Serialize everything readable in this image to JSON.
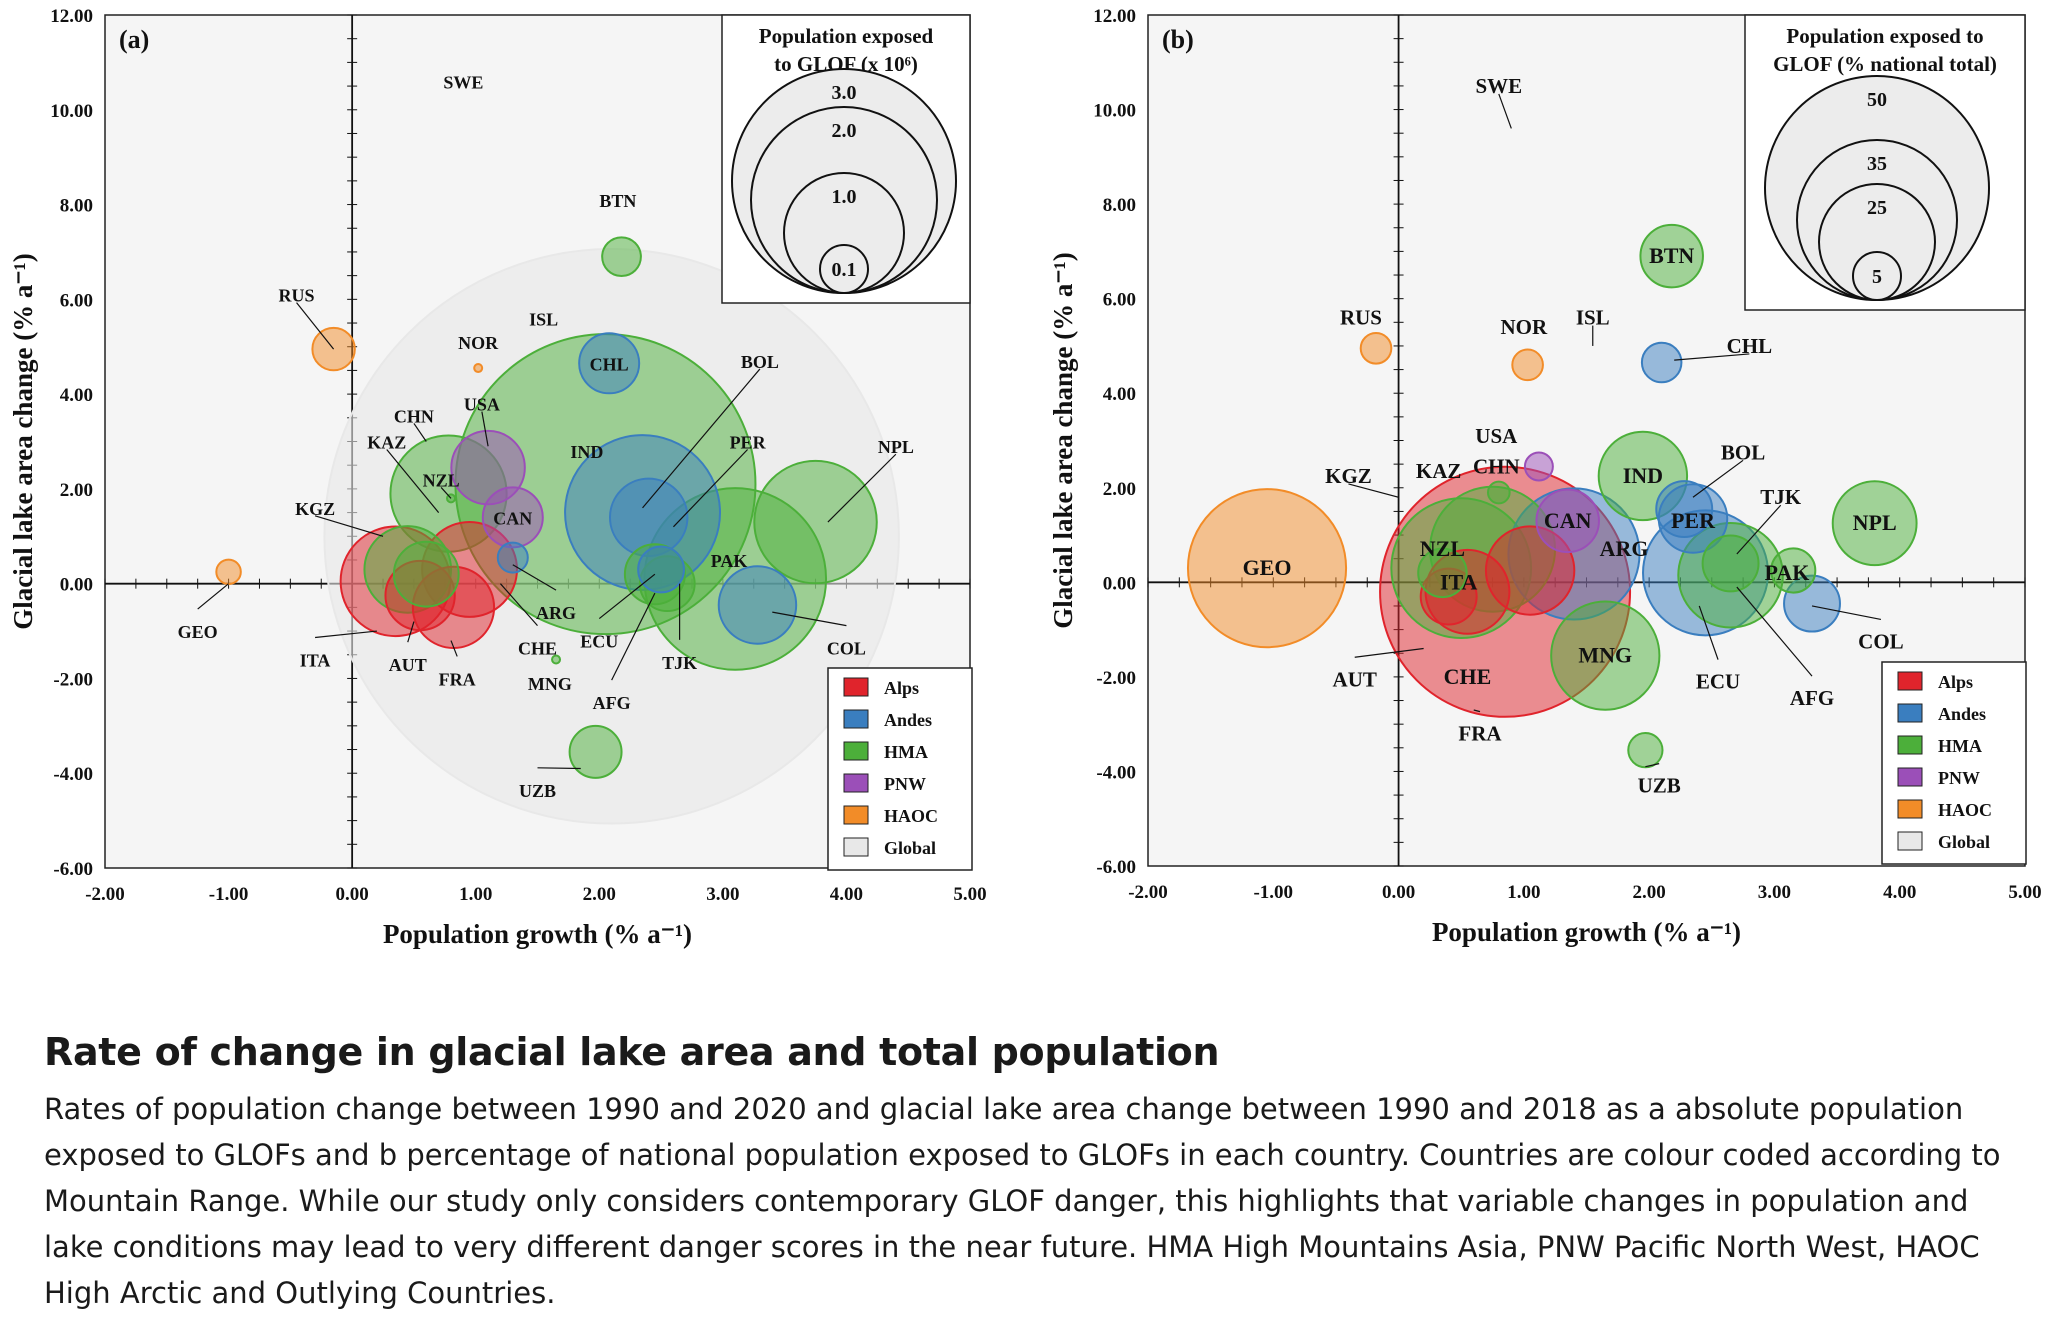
{
  "caption": {
    "title": "Rate of change in glacial lake area and total population",
    "body": "Rates of population change between 1990 and 2020 and glacial lake area change between 1990 and 2018 as a absolute population exposed to GLOFs and b percentage of national population exposed to GLOFs in each country. Countries are colour coded according to Mountain Range. While our study only considers contemporary GLOF danger, this highlights that variable changes in population and lake conditions may lead to very different danger scores in the near future. HMA High Mountains Asia, PNW Pacific North West, HAOC High Arctic and Outlying Countries."
  },
  "colors": {
    "Alps": "#e0242c",
    "Andes": "#3a7ebf",
    "HMA": "#4caf3a",
    "PNW": "#9b4fb8",
    "HAOC": "#f28c28",
    "Global": "#e8e8e8"
  },
  "legend_ranges": [
    "Alps",
    "Andes",
    "HMA",
    "PNW",
    "HAOC",
    "Global"
  ],
  "chart_data": [
    {
      "type": "scatter",
      "panel_label": "(a)",
      "xlabel": "Population growth (% a⁻¹)",
      "ylabel": "Glacial lake area change (% a⁻¹)",
      "xlim": [
        -2,
        5
      ],
      "ylim": [
        -6,
        12
      ],
      "xticks": [
        "-2.00",
        "-1.00",
        "0.00",
        "1.00",
        "2.00",
        "3.00",
        "4.00",
        "5.00"
      ],
      "yticks": [
        "-6.00",
        "-4.00",
        "-2.00",
        "0.00",
        "2.00",
        "4.00",
        "6.00",
        "8.00",
        "10.00",
        "12.00"
      ],
      "size_legend": {
        "title": [
          "Population exposed",
          "to GLOF (x 10⁶)"
        ],
        "values": [
          "3.0",
          "2.0",
          "1.0",
          "0.1"
        ]
      },
      "points": [
        {
          "code": "GLOBAL",
          "range": "Global",
          "x": 2.1,
          "y": 1.0,
          "size": 11.0,
          "label": false
        },
        {
          "code": "IND",
          "range": "HMA",
          "x": 2.05,
          "y": 2.1,
          "size": 3.0
        },
        {
          "code": "PAK",
          "range": "HMA",
          "x": 3.1,
          "y": 0.1,
          "size": 1.1
        },
        {
          "code": "PER",
          "range": "Andes",
          "x": 2.35,
          "y": 1.5,
          "size": 0.8
        },
        {
          "code": "NPL",
          "range": "HMA",
          "x": 3.75,
          "y": 1.3,
          "size": 0.5
        },
        {
          "code": "CHN",
          "range": "HMA",
          "x": 0.78,
          "y": 1.9,
          "size": 0.45
        },
        {
          "code": "ITA",
          "range": "Alps",
          "x": 0.35,
          "y": 0.05,
          "size": 0.4
        },
        {
          "code": "KGZ",
          "range": "HMA",
          "x": 0.45,
          "y": 0.3,
          "size": 0.25
        },
        {
          "code": "CHE",
          "range": "Alps",
          "x": 0.95,
          "y": 0.3,
          "size": 0.3
        },
        {
          "code": "FRA",
          "range": "Alps",
          "x": 0.82,
          "y": -0.5,
          "size": 0.22
        },
        {
          "code": "AUT",
          "range": "Alps",
          "x": 0.55,
          "y": -0.25,
          "size": 0.16
        },
        {
          "code": "KAZ",
          "range": "HMA",
          "x": 0.6,
          "y": 0.2,
          "size": 0.14
        },
        {
          "code": "USA",
          "range": "PNW",
          "x": 1.1,
          "y": 2.45,
          "size": 0.18
        },
        {
          "code": "CAN",
          "range": "PNW",
          "x": 1.3,
          "y": 1.4,
          "size": 0.12
        },
        {
          "code": "BOL",
          "range": "Andes",
          "x": 2.4,
          "y": 1.4,
          "size": 0.2
        },
        {
          "code": "COL",
          "range": "Andes",
          "x": 3.28,
          "y": -0.45,
          "size": 0.2
        },
        {
          "code": "TJK",
          "range": "HMA",
          "x": 2.55,
          "y": 0.0,
          "size": 0.1
        },
        {
          "code": "AFG",
          "range": "HMA",
          "x": 2.45,
          "y": 0.2,
          "size": 0.12
        },
        {
          "code": "ECU",
          "range": "Andes",
          "x": 2.5,
          "y": 0.3,
          "size": 0.07
        },
        {
          "code": "ARG",
          "range": "Andes",
          "x": 1.3,
          "y": 0.55,
          "size": 0.03
        },
        {
          "code": "CHL",
          "range": "Andes",
          "x": 2.08,
          "y": 4.65,
          "size": 0.12
        },
        {
          "code": "BTN",
          "range": "HMA",
          "x": 2.18,
          "y": 6.9,
          "size": 0.05
        },
        {
          "code": "UZB",
          "range": "HMA",
          "x": 1.97,
          "y": -3.55,
          "size": 0.09
        },
        {
          "code": "RUS",
          "range": "HAOC",
          "x": -0.15,
          "y": 4.95,
          "size": 0.06
        },
        {
          "code": "GEO",
          "range": "HAOC",
          "x": -1.0,
          "y": 0.25,
          "size": 0.02
        },
        {
          "code": "NOR",
          "range": "HAOC",
          "x": 1.02,
          "y": 4.55,
          "size": 0.002
        },
        {
          "code": "NZL",
          "range": "HMA",
          "x": 0.8,
          "y": 1.8,
          "size": 0.002
        },
        {
          "code": "MNG",
          "range": "HMA",
          "x": 1.65,
          "y": -1.6,
          "size": 0.002
        },
        {
          "code": "SWE",
          "range": "HAOC",
          "x": 0.9,
          "y": 10.4,
          "size": 0,
          "label": true
        },
        {
          "code": "ISL",
          "range": "HAOC",
          "x": 1.55,
          "y": 5.2,
          "size": 0,
          "label": true
        }
      ],
      "labels": [
        {
          "code": "SWE",
          "x": 0.9,
          "y": 10.6
        },
        {
          "code": "BTN",
          "x": 2.15,
          "y": 8.1
        },
        {
          "code": "RUS",
          "x": -0.45,
          "y": 6.1,
          "leader": [
            -0.15,
            4.95
          ]
        },
        {
          "code": "NOR",
          "x": 1.02,
          "y": 5.1
        },
        {
          "code": "ISL",
          "x": 1.55,
          "y": 5.6
        },
        {
          "code": "CHL",
          "x": 2.08,
          "y": 4.65,
          "inside": true
        },
        {
          "code": "BOL",
          "x": 3.3,
          "y": 4.7,
          "leader": [
            2.35,
            1.6
          ]
        },
        {
          "code": "USA",
          "x": 1.05,
          "y": 3.8,
          "leader": [
            1.1,
            2.9
          ]
        },
        {
          "code": "CHN",
          "x": 0.5,
          "y": 3.55,
          "leader": [
            0.6,
            3.0
          ]
        },
        {
          "code": "KAZ",
          "x": 0.28,
          "y": 3.0,
          "leader": [
            0.7,
            1.5
          ]
        },
        {
          "code": "IND",
          "x": 1.9,
          "y": 2.8
        },
        {
          "code": "PER",
          "x": 3.2,
          "y": 3.0,
          "leader": [
            2.6,
            1.2
          ]
        },
        {
          "code": "NPL",
          "x": 4.4,
          "y": 2.9,
          "leader": [
            3.85,
            1.3
          ]
        },
        {
          "code": "NZL",
          "x": 0.72,
          "y": 2.2,
          "leader": [
            0.8,
            1.8
          ]
        },
        {
          "code": "KGZ",
          "x": -0.3,
          "y": 1.6,
          "leader": [
            0.25,
            1.0
          ]
        },
        {
          "code": "CAN",
          "x": 1.3,
          "y": 1.4,
          "inside": true
        },
        {
          "code": "PAK",
          "x": 3.05,
          "y": 0.5
        },
        {
          "code": "ARG",
          "x": 1.65,
          "y": -0.6,
          "leader": [
            1.3,
            0.4
          ]
        },
        {
          "code": "CHE",
          "x": 1.5,
          "y": -1.35,
          "leader": [
            1.2,
            0.0
          ]
        },
        {
          "code": "ECU",
          "x": 2.0,
          "y": -1.2,
          "leader": [
            2.45,
            0.2
          ]
        },
        {
          "code": "COL",
          "x": 4.0,
          "y": -1.35,
          "leader": [
            3.4,
            -0.6
          ]
        },
        {
          "code": "TJK",
          "x": 2.65,
          "y": -1.65,
          "leader": [
            2.65,
            0.0
          ]
        },
        {
          "code": "ITA",
          "x": -0.3,
          "y": -1.6,
          "leader": [
            0.2,
            -1.0
          ]
        },
        {
          "code": "AUT",
          "x": 0.45,
          "y": -1.7,
          "leader": [
            0.5,
            -0.8
          ]
        },
        {
          "code": "FRA",
          "x": 0.85,
          "y": -2.0,
          "leader": [
            0.8,
            -1.2
          ]
        },
        {
          "code": "MNG",
          "x": 1.6,
          "y": -2.1
        },
        {
          "code": "AFG",
          "x": 2.1,
          "y": -2.5,
          "leader": [
            2.45,
            -0.2
          ]
        },
        {
          "code": "GEO",
          "x": -1.25,
          "y": -1.0,
          "leader": [
            -1.0,
            0.0
          ]
        },
        {
          "code": "UZB",
          "x": 1.5,
          "y": -4.35,
          "leader": [
            1.85,
            -3.9
          ]
        }
      ]
    },
    {
      "type": "scatter",
      "panel_label": "(b)",
      "xlabel": "Population growth (% a⁻¹)",
      "ylabel": "Glacial lake area change (% a⁻¹)",
      "xlim": [
        -2,
        5
      ],
      "ylim": [
        -6,
        12
      ],
      "xticks": [
        "-2.00",
        "-1.00",
        "0.00",
        "1.00",
        "2.00",
        "3.00",
        "4.00",
        "5.00"
      ],
      "yticks": [
        "-6.00",
        "-4.00",
        "-2.00",
        "0.00",
        "2.00",
        "4.00",
        "6.00",
        "8.00",
        "10.00",
        "12.00"
      ],
      "size_legend": {
        "title": [
          "Population exposed to",
          "GLOF (% national total)"
        ],
        "values": [
          "50",
          "35",
          "25",
          "5"
        ]
      },
      "points": [
        {
          "code": "FRA",
          "range": "Alps",
          "x": 0.85,
          "y": -0.2,
          "size": 80
        },
        {
          "code": "GEO",
          "range": "HAOC",
          "x": -1.05,
          "y": 0.3,
          "size": 32
        },
        {
          "code": "KGZ",
          "range": "HMA",
          "x": 0.5,
          "y": 0.3,
          "size": 25
        },
        {
          "code": "ARG",
          "range": "Andes",
          "x": 1.4,
          "y": 0.6,
          "size": 22
        },
        {
          "code": "ECU",
          "range": "Andes",
          "x": 2.45,
          "y": 0.2,
          "size": 20
        },
        {
          "code": "KAZ",
          "range": "HMA",
          "x": 0.75,
          "y": 0.7,
          "size": 20
        },
        {
          "code": "AFG",
          "range": "HMA",
          "x": 2.65,
          "y": 0.15,
          "size": 14
        },
        {
          "code": "MNG",
          "range": "HMA",
          "x": 1.65,
          "y": -1.55,
          "size": 15
        },
        {
          "code": "CHE",
          "range": "Alps",
          "x": 0.55,
          "y": -0.2,
          "size": 9
        },
        {
          "code": "ITA",
          "range": "Alps",
          "x": 1.05,
          "y": 0.25,
          "size": 10
        },
        {
          "code": "NPL",
          "range": "HMA",
          "x": 3.8,
          "y": 1.25,
          "size": 9
        },
        {
          "code": "IND",
          "range": "HMA",
          "x": 1.95,
          "y": 2.25,
          "size": 10
        },
        {
          "code": "AUT",
          "range": "Alps",
          "x": 0.4,
          "y": -0.3,
          "size": 4
        },
        {
          "code": "NZL",
          "range": "HMA",
          "x": 0.35,
          "y": 0.2,
          "size": 3
        },
        {
          "code": "CAN",
          "range": "PNW",
          "x": 1.35,
          "y": 1.3,
          "size": 5
        },
        {
          "code": "PER",
          "range": "Andes",
          "x": 2.35,
          "y": 1.35,
          "size": 6
        },
        {
          "code": "BOL",
          "range": "Andes",
          "x": 2.28,
          "y": 1.55,
          "size": 4
        },
        {
          "code": "COL",
          "range": "Andes",
          "x": 3.3,
          "y": -0.45,
          "size": 4
        },
        {
          "code": "PAK",
          "range": "HMA",
          "x": 3.15,
          "y": 0.25,
          "size": 2.5
        },
        {
          "code": "TJK",
          "range": "HMA",
          "x": 2.65,
          "y": 0.4,
          "size": 4
        },
        {
          "code": "BTN",
          "range": "HMA",
          "x": 2.18,
          "y": 6.9,
          "size": 5
        },
        {
          "code": "CHL",
          "range": "Andes",
          "x": 2.1,
          "y": 4.65,
          "size": 2
        },
        {
          "code": "UZB",
          "range": "HMA",
          "x": 1.97,
          "y": -3.55,
          "size": 1.5
        },
        {
          "code": "RUS",
          "range": "HAOC",
          "x": -0.18,
          "y": 4.95,
          "size": 1.2
        },
        {
          "code": "NOR",
          "range": "HAOC",
          "x": 1.03,
          "y": 4.6,
          "size": 1.2
        },
        {
          "code": "USA",
          "range": "PNW",
          "x": 1.12,
          "y": 2.45,
          "size": 1.0
        },
        {
          "code": "CHN",
          "range": "HMA",
          "x": 0.8,
          "y": 1.9,
          "size": 0.6
        }
      ],
      "labels": [
        {
          "code": "SWE",
          "x": 0.8,
          "y": 10.5,
          "leader": [
            0.9,
            9.6
          ]
        },
        {
          "code": "BTN",
          "x": 2.18,
          "y": 6.9,
          "inside": true
        },
        {
          "code": "RUS",
          "x": -0.3,
          "y": 5.6
        },
        {
          "code": "NOR",
          "x": 1.0,
          "y": 5.4
        },
        {
          "code": "ISL",
          "x": 1.55,
          "y": 5.6,
          "leader": [
            1.55,
            5.0
          ]
        },
        {
          "code": "CHL",
          "x": 2.8,
          "y": 5.0,
          "leader": [
            2.2,
            4.7
          ]
        },
        {
          "code": "USA",
          "x": 0.78,
          "y": 3.1
        },
        {
          "code": "BOL",
          "x": 2.75,
          "y": 2.75,
          "leader": [
            2.35,
            1.8
          ]
        },
        {
          "code": "IND",
          "x": 1.95,
          "y": 2.25,
          "inside": true
        },
        {
          "code": "KGZ",
          "x": -0.4,
          "y": 2.25,
          "leader": [
            0.0,
            1.8
          ]
        },
        {
          "code": "KAZ",
          "x": 0.32,
          "y": 2.35
        },
        {
          "code": "CHN",
          "x": 0.78,
          "y": 2.45
        },
        {
          "code": "TJK",
          "x": 3.05,
          "y": 1.8,
          "leader": [
            2.7,
            0.6
          ]
        },
        {
          "code": "CAN",
          "x": 1.35,
          "y": 1.3,
          "inside": true
        },
        {
          "code": "PER",
          "x": 2.35,
          "y": 1.3,
          "inside": true
        },
        {
          "code": "NPL",
          "x": 3.8,
          "y": 1.25,
          "inside": true
        },
        {
          "code": "GEO",
          "x": -1.05,
          "y": 0.3,
          "inside": true
        },
        {
          "code": "NZL",
          "x": 0.35,
          "y": 0.7,
          "inside": true
        },
        {
          "code": "ARG",
          "x": 1.8,
          "y": 0.7,
          "inside": true
        },
        {
          "code": "PAK",
          "x": 3.1,
          "y": 0.2,
          "inside": true
        },
        {
          "code": "ITA",
          "x": 0.48,
          "y": 0.0,
          "inside": true
        },
        {
          "code": "COL",
          "x": 3.85,
          "y": -1.25,
          "leader": [
            3.3,
            -0.5
          ]
        },
        {
          "code": "AUT",
          "x": -0.35,
          "y": -2.05,
          "leader": [
            0.2,
            -1.4
          ]
        },
        {
          "code": "CHE",
          "x": 0.55,
          "y": -2.0,
          "inside": true
        },
        {
          "code": "MNG",
          "x": 1.65,
          "y": -1.55,
          "inside": true
        },
        {
          "code": "ECU",
          "x": 2.55,
          "y": -2.1,
          "leader": [
            2.4,
            -0.5
          ]
        },
        {
          "code": "AFG",
          "x": 3.3,
          "y": -2.45,
          "leader": [
            2.7,
            -0.1
          ]
        },
        {
          "code": "FRA",
          "x": 0.65,
          "y": -3.2,
          "leader": [
            0.6,
            -2.7
          ]
        },
        {
          "code": "UZB",
          "x": 2.08,
          "y": -4.3,
          "leader": [
            1.97,
            -3.9
          ]
        }
      ]
    }
  ]
}
